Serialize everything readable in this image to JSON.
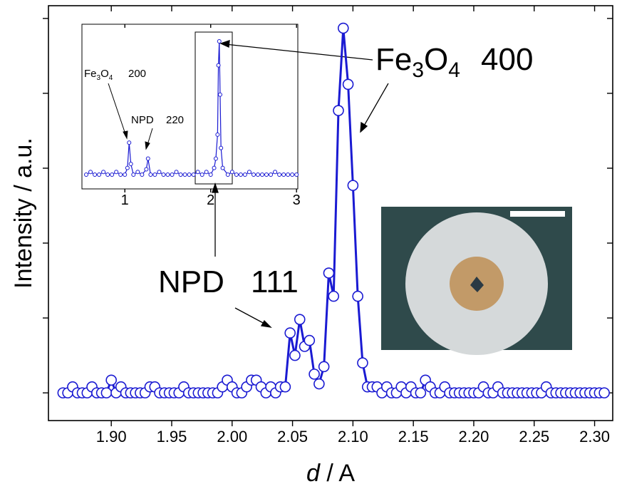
{
  "chart_data": [
    {
      "type": "line",
      "xlabel": [
        "d",
        " / A"
      ],
      "ylabel": "Intensity / a.u.",
      "xlim": [
        1.848,
        2.315
      ],
      "xticks": [
        {
          "value": 1.9,
          "label": "1.90"
        },
        {
          "value": 1.95,
          "label": "1.95"
        },
        {
          "value": 2.0,
          "label": "2.00"
        },
        {
          "value": 2.05,
          "label": "2.05"
        },
        {
          "value": 2.1,
          "label": "2.10"
        },
        {
          "value": 2.15,
          "label": "2.15"
        },
        {
          "value": 2.2,
          "label": "2.20"
        },
        {
          "value": 2.25,
          "label": "2.25"
        },
        {
          "value": 2.3,
          "label": "2.30"
        }
      ],
      "ylim": [
        -0.37,
        5.17
      ],
      "yticks": [
        0,
        1,
        2,
        3,
        4,
        5
      ],
      "annotations": [
        {
          "parts": [
            "Fe",
            "3",
            "O",
            "4"
          ],
          "index": "400"
        },
        {
          "parts": [
            "NPD"
          ],
          "index": "111"
        }
      ],
      "x": [
        1.86,
        1.864,
        1.868,
        1.872,
        1.876,
        1.88,
        1.884,
        1.888,
        1.892,
        1.896,
        1.9,
        1.904,
        1.908,
        1.912,
        1.916,
        1.92,
        1.924,
        1.928,
        1.932,
        1.936,
        1.94,
        1.944,
        1.948,
        1.952,
        1.956,
        1.96,
        1.964,
        1.968,
        1.972,
        1.976,
        1.98,
        1.984,
        1.988,
        1.992,
        1.996,
        2.0,
        2.004,
        2.008,
        2.012,
        2.016,
        2.02,
        2.024,
        2.028,
        2.032,
        2.036,
        2.04,
        2.044,
        2.048,
        2.052,
        2.056,
        2.06,
        2.064,
        2.068,
        2.072,
        2.076,
        2.08,
        2.084,
        2.088,
        2.092,
        2.096,
        2.1,
        2.104,
        2.108,
        2.112,
        2.116,
        2.12,
        2.124,
        2.128,
        2.132,
        2.136,
        2.14,
        2.144,
        2.148,
        2.152,
        2.156,
        2.16,
        2.164,
        2.168,
        2.172,
        2.176,
        2.18,
        2.184,
        2.188,
        2.192,
        2.196,
        2.2,
        2.204,
        2.208,
        2.212,
        2.216,
        2.22,
        2.224,
        2.228,
        2.232,
        2.236,
        2.24,
        2.244,
        2.248,
        2.252,
        2.256,
        2.26,
        2.264,
        2.268,
        2.272,
        2.276,
        2.28,
        2.284,
        2.288,
        2.292,
        2.296,
        2.3,
        2.304,
        2.308
      ],
      "series": [
        {
          "color": "#1a1ad2",
          "values": [
            0,
            0,
            0.08,
            0,
            0,
            0,
            0.08,
            0,
            0,
            0,
            0.17,
            0,
            0.08,
            0,
            0,
            0,
            0,
            0,
            0.08,
            0.08,
            0,
            0,
            0,
            0,
            0,
            0.08,
            0,
            0,
            0,
            0,
            0,
            0,
            0,
            0.08,
            0.17,
            0.08,
            0,
            0,
            0.08,
            0.17,
            0.17,
            0.08,
            0,
            0.08,
            0,
            0.08,
            0.08,
            0.8,
            0.5,
            0.98,
            0.62,
            0.7,
            0.25,
            0.12,
            0.35,
            1.6,
            1.29,
            3.77,
            4.87,
            4.12,
            2.77,
            1.29,
            0.4,
            0.08,
            0.08,
            0.08,
            0,
            0.08,
            0,
            0,
            0.08,
            0,
            0.08,
            0,
            0,
            0.17,
            0.08,
            0,
            0,
            0.08,
            0,
            0,
            0,
            0,
            0,
            0,
            0,
            0.08,
            0,
            0,
            0.08,
            0,
            0,
            0,
            0,
            0,
            0,
            0,
            0,
            0,
            0.08,
            0,
            0,
            0,
            0,
            0,
            0,
            0,
            0,
            0,
            0,
            0,
            0
          ]
        }
      ]
    },
    {
      "type": "line",
      "xlim": [
        0.5,
        3.015
      ],
      "xticks": [
        1,
        2,
        3
      ],
      "ylim": [
        -0.107,
        1.128
      ],
      "annotations": [
        {
          "parts": [
            "Fe",
            "3",
            "O",
            "4"
          ],
          "index": "200"
        },
        {
          "parts": [
            "NPD"
          ],
          "index": "220"
        }
      ],
      "x": [
        0.55,
        0.6,
        0.65,
        0.7,
        0.75,
        0.8,
        0.85,
        0.9,
        0.95,
        1.0,
        1.03,
        1.05,
        1.07,
        1.1,
        1.15,
        1.2,
        1.25,
        1.27,
        1.3,
        1.35,
        1.4,
        1.45,
        1.5,
        1.55,
        1.6,
        1.65,
        1.7,
        1.75,
        1.8,
        1.85,
        1.9,
        1.95,
        2.0,
        2.04,
        2.06,
        2.08,
        2.09,
        2.1,
        2.11,
        2.12,
        2.14,
        2.2,
        2.25,
        2.3,
        2.35,
        2.4,
        2.45,
        2.5,
        2.55,
        2.6,
        2.65,
        2.7,
        2.75,
        2.8,
        2.85,
        2.9,
        2.95,
        3.0
      ],
      "series": [
        {
          "color": "#1a1ad2",
          "values": [
            0,
            0.02,
            0,
            0,
            0.02,
            0,
            0,
            0.02,
            0,
            0,
            0.05,
            0.24,
            0.08,
            0,
            0.02,
            0,
            0.04,
            0.12,
            0,
            0,
            0.02,
            0,
            0,
            0,
            0.02,
            0,
            0,
            0,
            0,
            0.02,
            0,
            0.02,
            0,
            0.05,
            0.12,
            0.3,
            0.82,
            1,
            0.6,
            0.2,
            0.05,
            0,
            0.02,
            0,
            0,
            0,
            0.02,
            0,
            0,
            0,
            0,
            0,
            0.02,
            0,
            0,
            0,
            0,
            0
          ]
        }
      ]
    }
  ]
}
